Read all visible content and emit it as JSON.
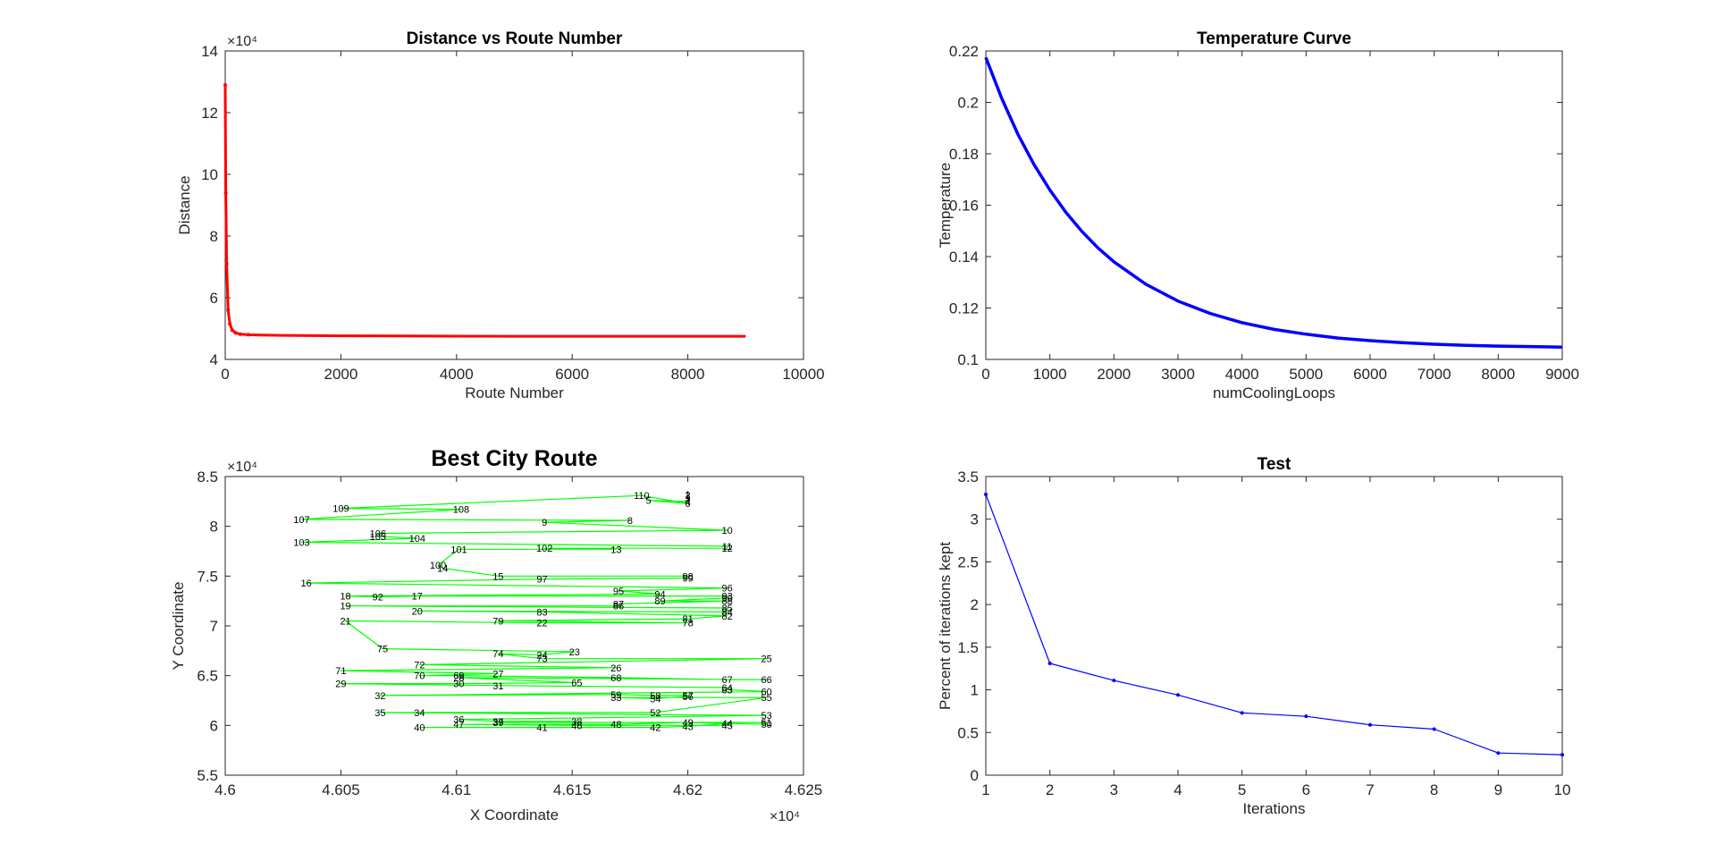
{
  "chart_data": [
    {
      "id": "distance",
      "type": "line",
      "title": "Distance vs Route Number",
      "xlabel": "Route Number",
      "ylabel": "Distance",
      "xlim": [
        0,
        10000
      ],
      "ylim": [
        40000,
        140000
      ],
      "xticks": [
        0,
        2000,
        4000,
        6000,
        8000,
        10000
      ],
      "xtick_labels": [
        "0",
        "2000",
        "4000",
        "6000",
        "8000",
        "10000"
      ],
      "yticks": [
        40000,
        60000,
        80000,
        100000,
        120000,
        140000
      ],
      "ytick_labels": [
        "4",
        "6",
        "8",
        "10",
        "12",
        "14"
      ],
      "y_exponent_label": "×10⁴",
      "color": "#ff0000",
      "series": [
        {
          "x": [
            0,
            10,
            25,
            50,
            80,
            120,
            180,
            260,
            400,
            600,
            1000,
            1500,
            2000,
            3000,
            4000,
            5000,
            6000,
            7000,
            8000,
            9000
          ],
          "y": [
            129000,
            94000,
            71000,
            56000,
            51500,
            49500,
            48600,
            48200,
            48000,
            47900,
            47800,
            47700,
            47650,
            47600,
            47550,
            47500,
            47500,
            47500,
            47500,
            47500
          ]
        }
      ]
    },
    {
      "id": "temperature",
      "type": "line",
      "title": "Temperature Curve",
      "xlabel": "numCoolingLoops",
      "ylabel": "Temperature",
      "xlim": [
        0,
        9000
      ],
      "ylim": [
        0.1,
        0.22
      ],
      "xticks": [
        0,
        1000,
        2000,
        3000,
        4000,
        5000,
        6000,
        7000,
        8000,
        9000
      ],
      "xtick_labels": [
        "0",
        "1000",
        "2000",
        "3000",
        "4000",
        "5000",
        "6000",
        "7000",
        "8000",
        "9000"
      ],
      "yticks": [
        0.1,
        0.12,
        0.14,
        0.16,
        0.18,
        0.2,
        0.22
      ],
      "ytick_labels": [
        "0.1",
        "0.12",
        "0.14",
        "0.16",
        "0.18",
        "0.2",
        "0.22"
      ],
      "color": "#0000ff",
      "series": [
        {
          "x": [
            0,
            250,
            500,
            750,
            1000,
            1250,
            1500,
            1750,
            2000,
            2500,
            3000,
            3500,
            4000,
            4500,
            5000,
            5500,
            6000,
            6500,
            7000,
            7500,
            8000,
            8500,
            9000
          ],
          "y": [
            0.2175,
            0.2015,
            0.1877,
            0.1759,
            0.1659,
            0.1572,
            0.1498,
            0.1434,
            0.138,
            0.1292,
            0.1227,
            0.1179,
            0.1143,
            0.1117,
            0.1098,
            0.1083,
            0.1073,
            0.1065,
            0.1059,
            0.1055,
            0.1052,
            0.105,
            0.1048
          ]
        }
      ]
    },
    {
      "id": "route",
      "type": "line",
      "title": "Best City Route",
      "xlabel": "X Coordinate",
      "ylabel": "Y Coordinate",
      "xlim": [
        46000,
        46250
      ],
      "ylim": [
        55000,
        85000
      ],
      "xticks": [
        46000,
        46050,
        46100,
        46150,
        46200,
        46250
      ],
      "xtick_labels": [
        "4.6",
        "4.605",
        "4.61",
        "4.615",
        "4.62",
        "4.625"
      ],
      "yticks": [
        55000,
        60000,
        65000,
        70000,
        75000,
        80000,
        85000
      ],
      "ytick_labels": [
        "5.5",
        "6",
        "6.5",
        "7",
        "7.5",
        "8",
        "8.5"
      ],
      "x_exponent_label": "×10⁴",
      "y_exponent_label": "×10⁴",
      "color": "#00ff00",
      "points": [
        {
          "label": "1",
          "x": 46200,
          "y": 83200
        },
        {
          "label": "2",
          "x": 46200,
          "y": 83100
        },
        {
          "label": "3",
          "x": 46200,
          "y": 82800
        },
        {
          "label": "4",
          "x": 46200,
          "y": 82500
        },
        {
          "label": "5",
          "x": 46183,
          "y": 82600
        },
        {
          "label": "6",
          "x": 46200,
          "y": 82300
        },
        {
          "label": "110",
          "x": 46180,
          "y": 83100
        },
        {
          "label": "109",
          "x": 46050,
          "y": 81800
        },
        {
          "label": "108",
          "x": 46102,
          "y": 81700
        },
        {
          "label": "107",
          "x": 46033,
          "y": 80700
        },
        {
          "label": "8",
          "x": 46175,
          "y": 80600
        },
        {
          "label": "9",
          "x": 46138,
          "y": 80400
        },
        {
          "label": "10",
          "x": 46217,
          "y": 79600
        },
        {
          "label": "106",
          "x": 46066,
          "y": 79300
        },
        {
          "label": "105",
          "x": 46066,
          "y": 79000
        },
        {
          "label": "104",
          "x": 46083,
          "y": 78800
        },
        {
          "label": "103",
          "x": 46033,
          "y": 78400
        },
        {
          "label": "11",
          "x": 46217,
          "y": 78000
        },
        {
          "label": "12",
          "x": 46217,
          "y": 77800
        },
        {
          "label": "102",
          "x": 46138,
          "y": 77800
        },
        {
          "label": "13",
          "x": 46169,
          "y": 77700
        },
        {
          "label": "101",
          "x": 46101,
          "y": 77700
        },
        {
          "label": "100",
          "x": 46092,
          "y": 76100
        },
        {
          "label": "14",
          "x": 46094,
          "y": 75800
        },
        {
          "label": "15",
          "x": 46118,
          "y": 75000
        },
        {
          "label": "98",
          "x": 46200,
          "y": 75000
        },
        {
          "label": "99",
          "x": 46200,
          "y": 74800
        },
        {
          "label": "97",
          "x": 46137,
          "y": 74700
        },
        {
          "label": "16",
          "x": 46035,
          "y": 74300
        },
        {
          "label": "96",
          "x": 46217,
          "y": 73800
        },
        {
          "label": "95",
          "x": 46170,
          "y": 73500
        },
        {
          "label": "94",
          "x": 46188,
          "y": 73200
        },
        {
          "label": "18",
          "x": 46052,
          "y": 73000
        },
        {
          "label": "92",
          "x": 46066,
          "y": 72900
        },
        {
          "label": "17",
          "x": 46083,
          "y": 73000
        },
        {
          "label": "93",
          "x": 46217,
          "y": 73000
        },
        {
          "label": "90",
          "x": 46217,
          "y": 72800
        },
        {
          "label": "89",
          "x": 46188,
          "y": 72500
        },
        {
          "label": "88",
          "x": 46217,
          "y": 72500
        },
        {
          "label": "87",
          "x": 46170,
          "y": 72200
        },
        {
          "label": "86",
          "x": 46170,
          "y": 72000
        },
        {
          "label": "19",
          "x": 46052,
          "y": 72000
        },
        {
          "label": "85",
          "x": 46217,
          "y": 71800
        },
        {
          "label": "84",
          "x": 46217,
          "y": 71400
        },
        {
          "label": "20",
          "x": 46083,
          "y": 71500
        },
        {
          "label": "83",
          "x": 46137,
          "y": 71400
        },
        {
          "label": "82",
          "x": 46217,
          "y": 71000
        },
        {
          "label": "81",
          "x": 46200,
          "y": 70700
        },
        {
          "label": "79",
          "x": 46118,
          "y": 70500
        },
        {
          "label": "78",
          "x": 46200,
          "y": 70300
        },
        {
          "label": "22",
          "x": 46137,
          "y": 70300
        },
        {
          "label": "21",
          "x": 46052,
          "y": 70500
        },
        {
          "label": "75",
          "x": 46068,
          "y": 67700
        },
        {
          "label": "23",
          "x": 46151,
          "y": 67400
        },
        {
          "label": "24",
          "x": 46137,
          "y": 67100
        },
        {
          "label": "74",
          "x": 46118,
          "y": 67200
        },
        {
          "label": "73",
          "x": 46137,
          "y": 66700
        },
        {
          "label": "25",
          "x": 46234,
          "y": 66700
        },
        {
          "label": "72",
          "x": 46084,
          "y": 66100
        },
        {
          "label": "26",
          "x": 46169,
          "y": 65800
        },
        {
          "label": "71",
          "x": 46050,
          "y": 65500
        },
        {
          "label": "27",
          "x": 46118,
          "y": 65200
        },
        {
          "label": "70",
          "x": 46084,
          "y": 65000
        },
        {
          "label": "69",
          "x": 46101,
          "y": 65000
        },
        {
          "label": "68",
          "x": 46169,
          "y": 64800
        },
        {
          "label": "67",
          "x": 46217,
          "y": 64600
        },
        {
          "label": "66",
          "x": 46234,
          "y": 64600
        },
        {
          "label": "28",
          "x": 46101,
          "y": 64800
        },
        {
          "label": "65",
          "x": 46152,
          "y": 64300
        },
        {
          "label": "30",
          "x": 46101,
          "y": 64200
        },
        {
          "label": "29",
          "x": 46050,
          "y": 64200
        },
        {
          "label": "31",
          "x": 46118,
          "y": 64000
        },
        {
          "label": "64",
          "x": 46217,
          "y": 63800
        },
        {
          "label": "63",
          "x": 46217,
          "y": 63600
        },
        {
          "label": "60",
          "x": 46234,
          "y": 63400
        },
        {
          "label": "32",
          "x": 46067,
          "y": 63000
        },
        {
          "label": "59",
          "x": 46169,
          "y": 63100
        },
        {
          "label": "58",
          "x": 46186,
          "y": 63000
        },
        {
          "label": "57",
          "x": 46200,
          "y": 63000
        },
        {
          "label": "56",
          "x": 46200,
          "y": 62900
        },
        {
          "label": "54",
          "x": 46186,
          "y": 62700
        },
        {
          "label": "33",
          "x": 46169,
          "y": 62800
        },
        {
          "label": "55",
          "x": 46234,
          "y": 62800
        },
        {
          "label": "52",
          "x": 46186,
          "y": 61300
        },
        {
          "label": "34",
          "x": 46084,
          "y": 61300
        },
        {
          "label": "35",
          "x": 46067,
          "y": 61300
        },
        {
          "label": "53",
          "x": 46234,
          "y": 61000
        },
        {
          "label": "36",
          "x": 46101,
          "y": 60600
        },
        {
          "label": "37",
          "x": 46118,
          "y": 60400
        },
        {
          "label": "38",
          "x": 46152,
          "y": 60400
        },
        {
          "label": "39",
          "x": 46118,
          "y": 60300
        },
        {
          "label": "51",
          "x": 46234,
          "y": 60300
        },
        {
          "label": "50",
          "x": 46234,
          "y": 60100
        },
        {
          "label": "49",
          "x": 46200,
          "y": 60300
        },
        {
          "label": "48",
          "x": 46169,
          "y": 60100
        },
        {
          "label": "47",
          "x": 46101,
          "y": 60100
        },
        {
          "label": "46",
          "x": 46152,
          "y": 60000
        },
        {
          "label": "45",
          "x": 46217,
          "y": 60000
        },
        {
          "label": "44",
          "x": 46217,
          "y": 60200
        },
        {
          "label": "43",
          "x": 46200,
          "y": 59900
        },
        {
          "label": "42",
          "x": 46186,
          "y": 59800
        },
        {
          "label": "41",
          "x": 46137,
          "y": 59800
        },
        {
          "label": "40",
          "x": 46084,
          "y": 59800
        }
      ]
    },
    {
      "id": "test",
      "type": "line",
      "title": "Test",
      "xlabel": "Iterations",
      "ylabel": "Percent of iterations kept",
      "xlim": [
        1,
        10
      ],
      "ylim": [
        0,
        3.5
      ],
      "xticks": [
        1,
        2,
        3,
        4,
        5,
        6,
        7,
        8,
        9,
        10
      ],
      "xtick_labels": [
        "1",
        "2",
        "3",
        "4",
        "5",
        "6",
        "7",
        "8",
        "9",
        "10"
      ],
      "yticks": [
        0,
        0.5,
        1,
        1.5,
        2,
        2.5,
        3,
        3.5
      ],
      "ytick_labels": [
        "0",
        "0.5",
        "1",
        "1.5",
        "2",
        "2.5",
        "3",
        "3.5"
      ],
      "color": "#0000ff",
      "series": [
        {
          "x": [
            1,
            2,
            3,
            4,
            5,
            6,
            7,
            8,
            9,
            10
          ],
          "y": [
            3.29,
            1.31,
            1.11,
            0.94,
            0.73,
            0.69,
            0.59,
            0.54,
            0.26,
            0.24
          ]
        }
      ]
    }
  ]
}
